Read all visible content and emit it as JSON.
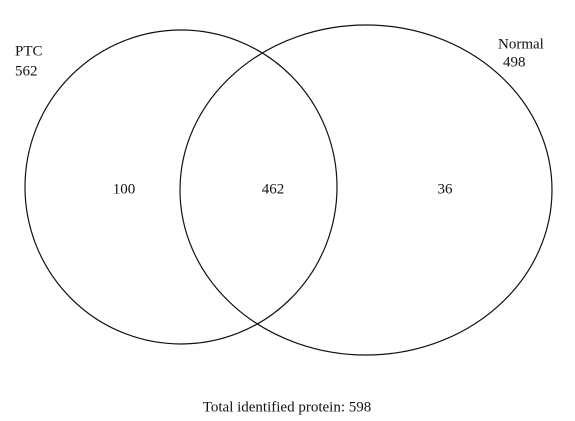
{
  "sets": [
    {
      "name": "PTC",
      "count": "562"
    },
    {
      "name": "Normal",
      "count": "498"
    }
  ],
  "regions": {
    "only_first": "100",
    "both": "462",
    "only_second": "36"
  },
  "total": "Total identified protein: 598"
}
